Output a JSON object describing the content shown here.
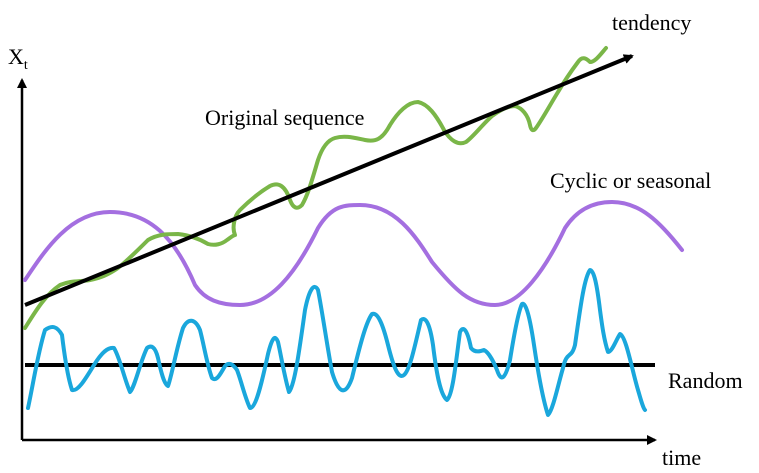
{
  "labels": {
    "y_axis_main": "X",
    "y_axis_sub": "t",
    "x_axis": "time",
    "trend": "tendency",
    "original": "Original sequence",
    "cyclic": "Cyclic or seasonal",
    "random": "Random"
  },
  "colors": {
    "axis": "#000000",
    "trend": "#000000",
    "original": "#7ab648",
    "cyclic": "#a46fe0",
    "random": "#1aa7dc",
    "text": "#000000"
  }
}
